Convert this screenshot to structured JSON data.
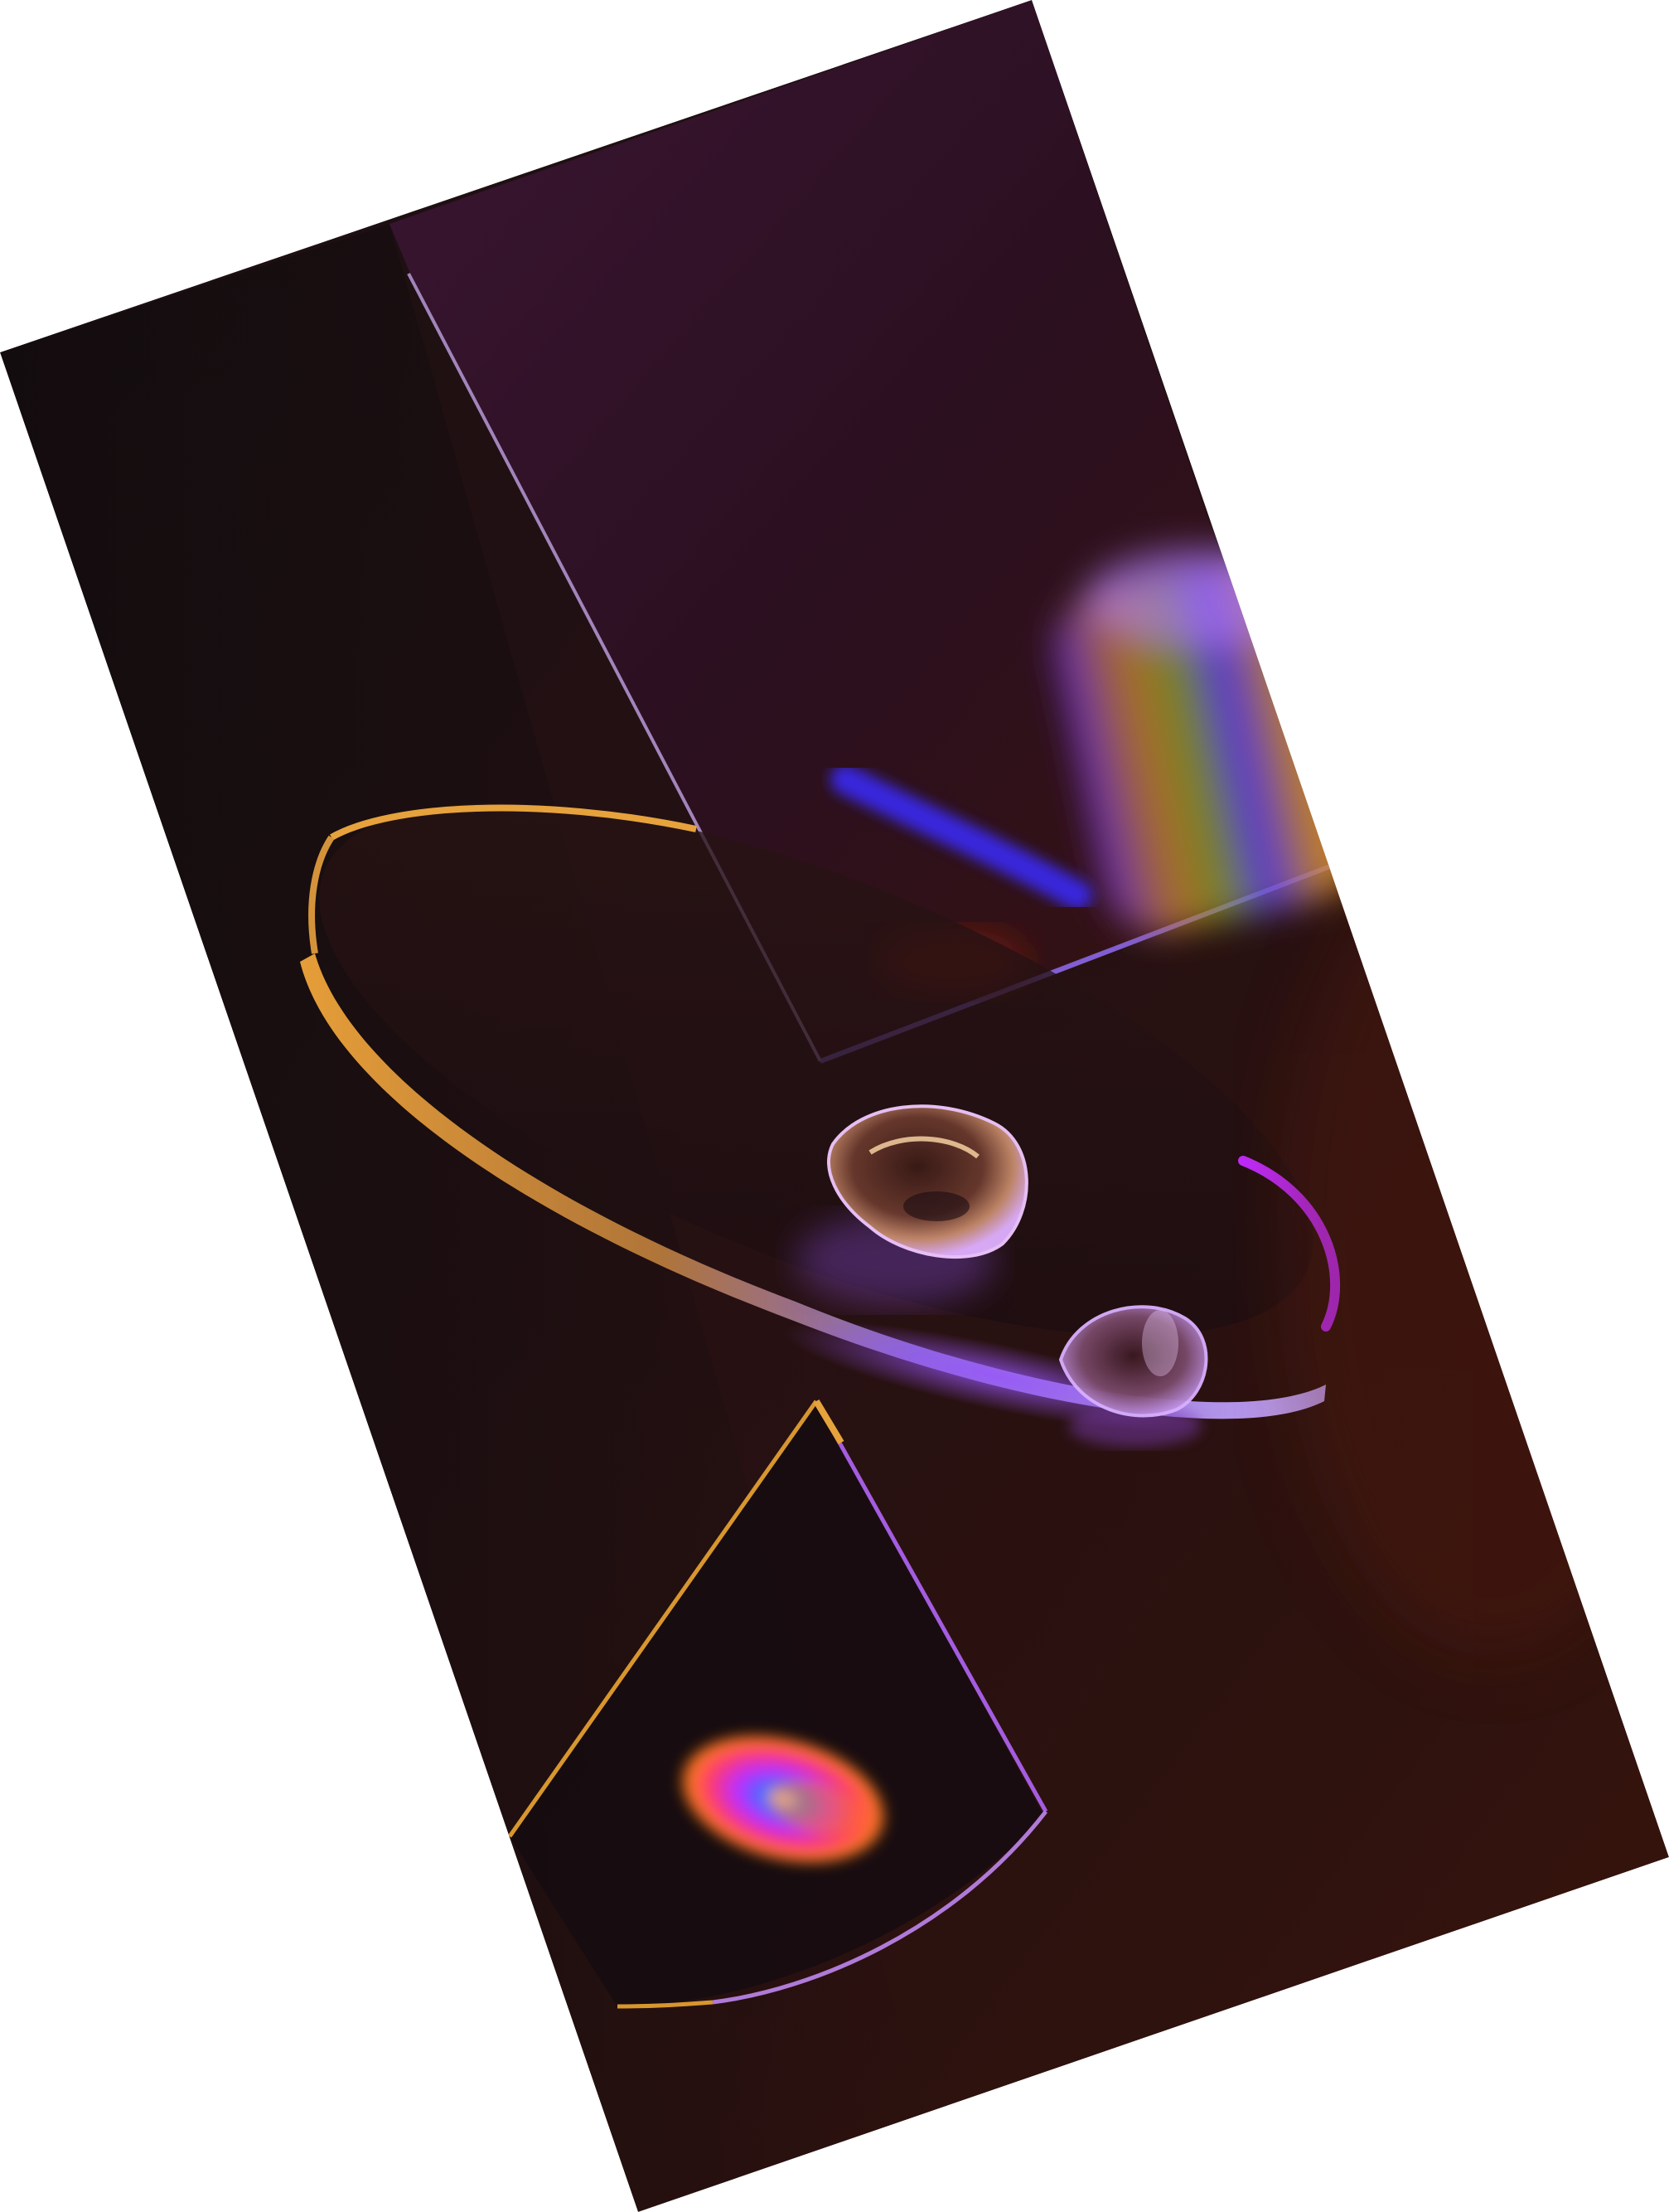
{
  "image": {
    "kind": "rotated phone wallpaper artwork",
    "background_color": "#ffffff",
    "panel_colors": {
      "dark": "#140d0f",
      "maroon": "#2a1014",
      "purple_top": "#3a1530",
      "rust": "#3a140c"
    },
    "accent_colors": {
      "gold": "#e6a23c",
      "violet": "#9b6cff",
      "magenta": "#c12bff",
      "blue": "#3b3cff",
      "rainbow_orange": "#ff7a1a"
    }
  }
}
